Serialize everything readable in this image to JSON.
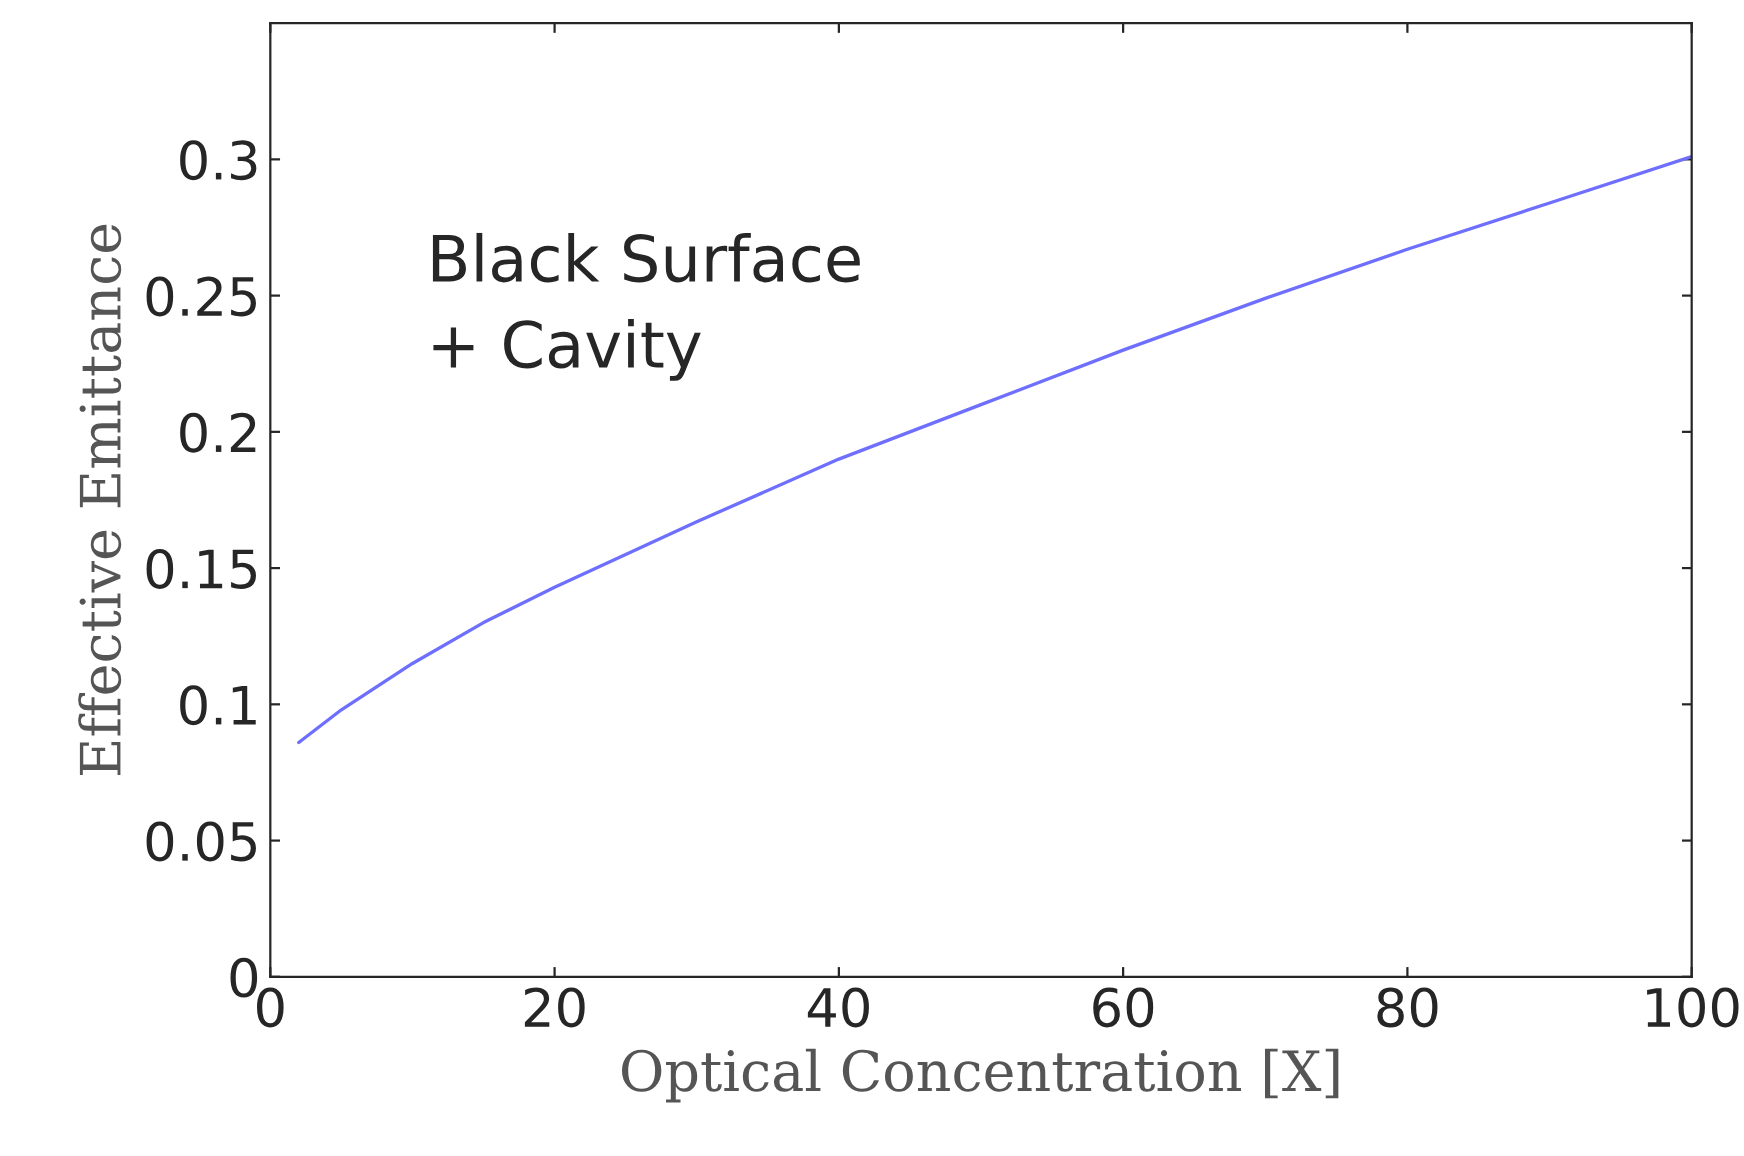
{
  "chart_data": {
    "type": "line",
    "xlabel": "Optical Concentration [X]",
    "ylabel": "Effective Emittance",
    "annotations": [
      "Black Surface\n+ Cavity"
    ],
    "series": [
      {
        "color": "#6f6fff",
        "x": [
          2,
          5,
          10,
          15,
          20,
          30,
          40,
          50,
          60,
          70,
          80,
          90,
          100
        ],
        "values": [
          0.086,
          0.098,
          0.115,
          0.13,
          0.143,
          0.167,
          0.19,
          0.21,
          0.23,
          0.249,
          0.267,
          0.284,
          0.301
        ]
      }
    ],
    "xlim": [
      0,
      100
    ],
    "xticks": [
      0,
      20,
      40,
      60,
      80,
      100
    ],
    "ylim": [
      0,
      0.35
    ],
    "yticks": [
      0,
      0.05,
      0.1,
      0.15,
      0.2,
      0.25,
      0.3
    ],
    "grid": false
  }
}
